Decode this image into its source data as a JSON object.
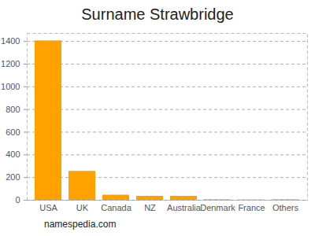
{
  "chart_data": {
    "type": "bar",
    "title": "Surname Strawbridge",
    "categories": [
      "USA",
      "UK",
      "Canada",
      "NZ",
      "Australia",
      "Denmark",
      "France",
      "Others"
    ],
    "values": [
      1405,
      255,
      45,
      35,
      35,
      5,
      3,
      5
    ],
    "color": "#ffa200",
    "ylim": [
      0,
      1470
    ],
    "yticks": [
      0,
      200,
      400,
      600,
      800,
      1000,
      1200,
      1400
    ],
    "grid": true,
    "caption": "namespedia.com"
  }
}
